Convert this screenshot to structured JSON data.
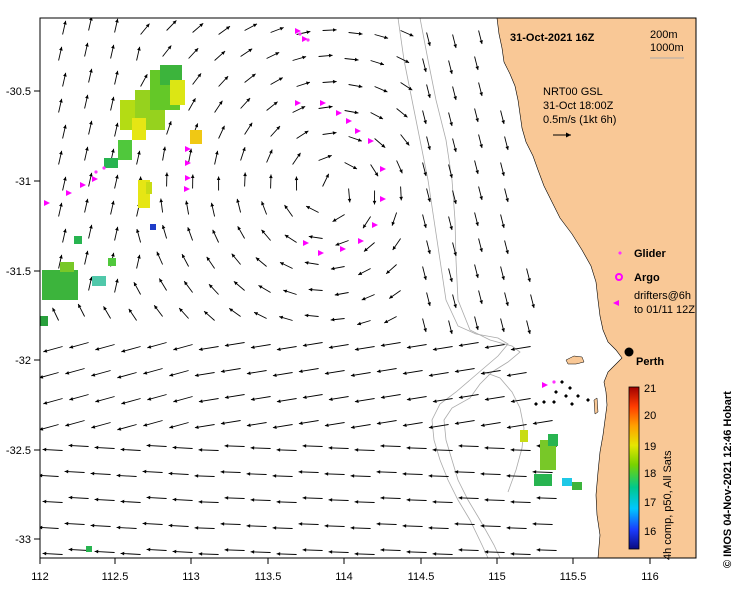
{
  "title": "31-Oct-2021 16Z",
  "depth_legend": {
    "line1": "200m",
    "line2": "1000m"
  },
  "current_info": {
    "line1": "NRT00 GSL",
    "line2": "31-Oct 18:00Z",
    "line3": "0.5m/s (1kt 6h)"
  },
  "symbol_legend": {
    "glider": "Glider",
    "argo": "Argo",
    "drifters_line1": "drifters@6h",
    "drifters_line2": "to 01/11 12Z"
  },
  "city_label": "Perth",
  "colorbar": {
    "label": "4h comp, p50, All Sats",
    "ticks": [
      "21",
      "20",
      "19",
      "18",
      "17",
      "16"
    ]
  },
  "credit": "© IMOS 04-Nov-2021 12:46 Hobart",
  "x_axis_labels": [
    "112",
    "112.5",
    "113",
    "113.5",
    "114",
    "114.5",
    "115",
    "115.5",
    "116"
  ],
  "y_axis_labels": [
    "-30.5",
    "-31",
    "-31.5",
    "-32",
    "-32.5",
    "-33"
  ],
  "colors": {
    "land": "#f9c896",
    "glider": "#ff33ff",
    "drifter": "#ff00ff",
    "isobath": "#aaaaaa"
  }
}
